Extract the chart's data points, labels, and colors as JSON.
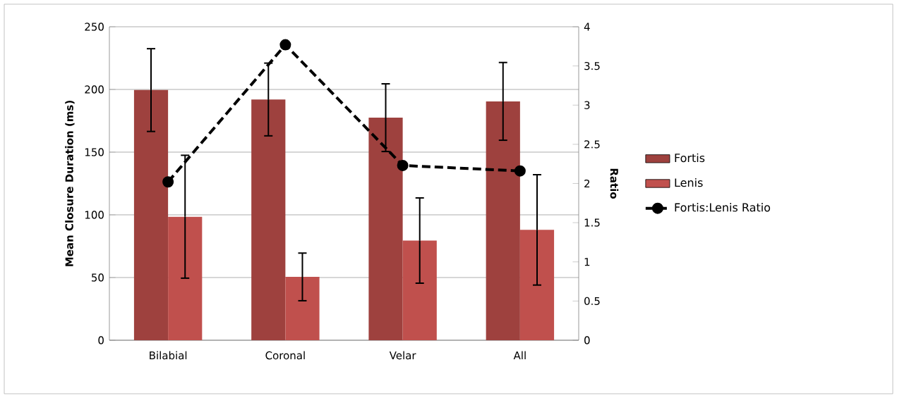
{
  "chart_data": {
    "type": "bar",
    "categories": [
      "Bilabial",
      "Coronal",
      "Velar",
      "All"
    ],
    "series": [
      {
        "name": "Fortis",
        "color": "#9e413e",
        "values": [
          199.5,
          192,
          177.5,
          190.5
        ],
        "errors": [
          33,
          29,
          27,
          31
        ]
      },
      {
        "name": "Lenis",
        "color": "#c0504d",
        "values": [
          98.5,
          50.5,
          79.5,
          88
        ],
        "errors": [
          49,
          19,
          34,
          44
        ]
      },
      {
        "name": "Fortis:Lenis Ratio",
        "type": "line",
        "axis": "y2",
        "color": "#000000",
        "marker": "circle",
        "line_style": "dashed",
        "values": [
          2.02,
          3.77,
          2.23,
          2.16
        ]
      }
    ],
    "ylabel": "Mean Closure Duration (ms)",
    "y2label": "Ratio",
    "ylim": [
      0,
      250
    ],
    "yticks": [
      0,
      50,
      100,
      150,
      200,
      250
    ],
    "y2lim": [
      0,
      4
    ],
    "y2ticks": [
      0,
      0.5,
      1,
      1.5,
      2,
      2.5,
      3,
      3.5,
      4
    ],
    "grid": "y",
    "legend": "right"
  }
}
